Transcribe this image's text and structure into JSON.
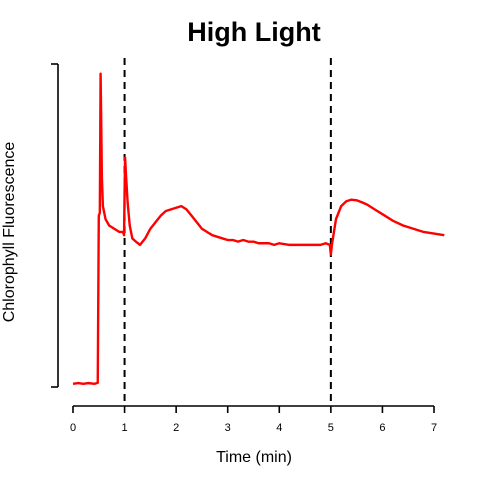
{
  "chart_data": {
    "type": "line",
    "title": "High Light",
    "xlabel": "Time (min)",
    "ylabel": "Chlorophyll Fluorescence",
    "xlim": [
      0,
      7
    ],
    "ylim": [
      0,
      1
    ],
    "x_ticks": [
      0,
      1,
      2,
      3,
      4,
      5,
      6,
      7
    ],
    "y_ticks_labeled": false,
    "grid": false,
    "legend": "none",
    "colors": {
      "series": "#ff0000",
      "reference_lines": "#000000",
      "axes": "#000000"
    },
    "reference_lines": [
      {
        "axis": "x",
        "value": 1,
        "style": "dashed"
      },
      {
        "axis": "x",
        "value": 5,
        "style": "dashed"
      }
    ],
    "series": [
      {
        "color": "#ff0000",
        "points": [
          [
            0.0,
            0.01
          ],
          [
            0.1,
            0.012
          ],
          [
            0.2,
            0.01
          ],
          [
            0.3,
            0.012
          ],
          [
            0.42,
            0.01
          ],
          [
            0.48,
            0.013
          ],
          [
            0.5,
            0.53
          ],
          [
            0.52,
            0.54
          ],
          [
            0.535,
            0.97
          ],
          [
            0.545,
            0.85
          ],
          [
            0.56,
            0.65
          ],
          [
            0.58,
            0.56
          ],
          [
            0.63,
            0.52
          ],
          [
            0.7,
            0.5
          ],
          [
            0.8,
            0.49
          ],
          [
            0.9,
            0.48
          ],
          [
            0.97,
            0.48
          ],
          [
            0.99,
            0.47
          ],
          [
            1.0,
            0.6
          ],
          [
            1.01,
            0.71
          ],
          [
            1.03,
            0.65
          ],
          [
            1.06,
            0.57
          ],
          [
            1.1,
            0.5
          ],
          [
            1.15,
            0.46
          ],
          [
            1.22,
            0.45
          ],
          [
            1.3,
            0.44
          ],
          [
            1.4,
            0.46
          ],
          [
            1.5,
            0.49
          ],
          [
            1.6,
            0.51
          ],
          [
            1.7,
            0.53
          ],
          [
            1.8,
            0.545
          ],
          [
            1.9,
            0.55
          ],
          [
            2.0,
            0.555
          ],
          [
            2.1,
            0.56
          ],
          [
            2.2,
            0.55
          ],
          [
            2.3,
            0.53
          ],
          [
            2.4,
            0.51
          ],
          [
            2.5,
            0.49
          ],
          [
            2.6,
            0.48
          ],
          [
            2.7,
            0.47
          ],
          [
            2.8,
            0.465
          ],
          [
            2.9,
            0.46
          ],
          [
            3.0,
            0.455
          ],
          [
            3.1,
            0.455
          ],
          [
            3.2,
            0.45
          ],
          [
            3.3,
            0.455
          ],
          [
            3.4,
            0.45
          ],
          [
            3.5,
            0.45
          ],
          [
            3.6,
            0.445
          ],
          [
            3.7,
            0.445
          ],
          [
            3.8,
            0.445
          ],
          [
            3.9,
            0.44
          ],
          [
            4.0,
            0.445
          ],
          [
            4.2,
            0.44
          ],
          [
            4.4,
            0.44
          ],
          [
            4.6,
            0.44
          ],
          [
            4.8,
            0.44
          ],
          [
            4.9,
            0.445
          ],
          [
            4.98,
            0.44
          ],
          [
            5.0,
            0.41
          ],
          [
            5.02,
            0.44
          ],
          [
            5.06,
            0.48
          ],
          [
            5.1,
            0.52
          ],
          [
            5.2,
            0.56
          ],
          [
            5.3,
            0.575
          ],
          [
            5.4,
            0.58
          ],
          [
            5.5,
            0.578
          ],
          [
            5.6,
            0.572
          ],
          [
            5.7,
            0.565
          ],
          [
            5.8,
            0.555
          ],
          [
            5.9,
            0.545
          ],
          [
            6.0,
            0.535
          ],
          [
            6.2,
            0.515
          ],
          [
            6.4,
            0.5
          ],
          [
            6.6,
            0.49
          ],
          [
            6.8,
            0.48
          ],
          [
            7.0,
            0.475
          ],
          [
            7.2,
            0.47
          ]
        ]
      }
    ]
  }
}
